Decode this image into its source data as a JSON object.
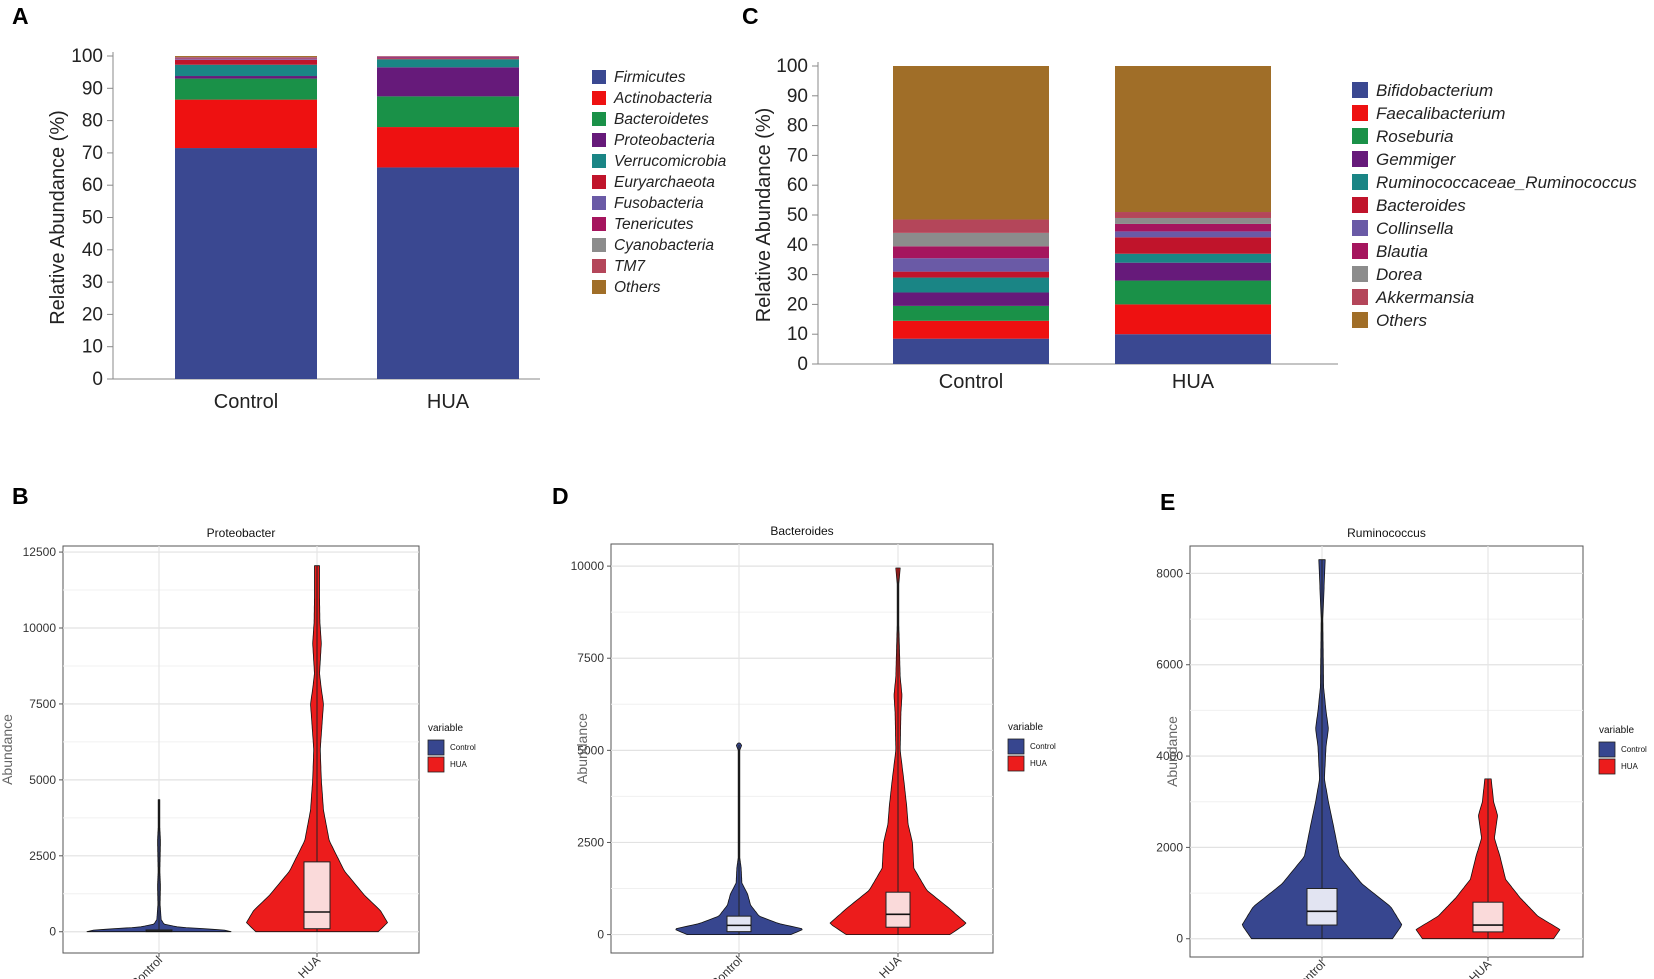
{
  "figure": {
    "panel_labels": [
      "A",
      "C",
      "B",
      "D",
      "E"
    ]
  },
  "chart_data": [
    {
      "id": "A",
      "type": "bar",
      "stacked": true,
      "title": "",
      "xlabel": "",
      "ylabel": "Relative Abundance (%)",
      "ylim": [
        0,
        100
      ],
      "yticks": [
        0,
        10,
        20,
        30,
        40,
        50,
        60,
        70,
        80,
        90,
        100
      ],
      "categories": [
        "Control",
        "HUA"
      ],
      "series": [
        {
          "name": "Firmicutes",
          "color": "#3A4891",
          "values": [
            71.5,
            65.5
          ]
        },
        {
          "name": "Actinobacteria",
          "color": "#EE1111",
          "values": [
            15.0,
            12.5
          ]
        },
        {
          "name": "Bacteroidetes",
          "color": "#1A9148",
          "values": [
            6.5,
            9.5
          ]
        },
        {
          "name": "Proteobacteria",
          "color": "#661A7A",
          "values": [
            0.8,
            9.0
          ]
        },
        {
          "name": "Verrucomicrobia",
          "color": "#1A8585",
          "values": [
            3.5,
            2.5
          ]
        },
        {
          "name": "Euryarchaeota",
          "color": "#C0142B",
          "values": [
            1.5,
            0.3
          ]
        },
        {
          "name": "Fusobacteria",
          "color": "#6A5AA6",
          "values": [
            0.2,
            0.2
          ]
        },
        {
          "name": "Tenericutes",
          "color": "#A5155E",
          "values": [
            0.3,
            0.3
          ]
        },
        {
          "name": "Cyanobacteria",
          "color": "#8C8C8C",
          "values": [
            0.2,
            0.1
          ]
        },
        {
          "name": "TM7",
          "color": "#B4465A",
          "values": [
            0.2,
            0.1
          ]
        },
        {
          "name": "Others",
          "color": "#A06E28",
          "values": [
            0.3,
            0.0
          ]
        }
      ]
    },
    {
      "id": "C",
      "type": "bar",
      "stacked": true,
      "title": "",
      "xlabel": "",
      "ylabel": "Relative Abundance (%)",
      "ylim": [
        0,
        100
      ],
      "yticks": [
        0,
        10,
        20,
        30,
        40,
        50,
        60,
        70,
        80,
        90,
        100
      ],
      "categories": [
        "Control",
        "HUA"
      ],
      "series": [
        {
          "name": "Bifidobacterium",
          "color": "#3A4891",
          "values": [
            8.5,
            10.0
          ]
        },
        {
          "name": "Faecalibacterium",
          "color": "#EE1111",
          "values": [
            6.0,
            10.0
          ]
        },
        {
          "name": "Roseburia",
          "color": "#1A9148",
          "values": [
            5.0,
            8.0
          ]
        },
        {
          "name": "Gemmiger",
          "color": "#661A7A",
          "values": [
            4.5,
            6.0
          ]
        },
        {
          "name": "Ruminococcaceae_Ruminococcus",
          "color": "#1A8585",
          "values": [
            5.0,
            3.0
          ]
        },
        {
          "name": "Bacteroides",
          "color": "#C0142B",
          "values": [
            2.0,
            5.5
          ]
        },
        {
          "name": "Collinsella",
          "color": "#6A5AA6",
          "values": [
            4.5,
            2.0
          ]
        },
        {
          "name": "Blautia",
          "color": "#A5155E",
          "values": [
            4.0,
            2.5
          ]
        },
        {
          "name": "Dorea",
          "color": "#8C8C8C",
          "values": [
            4.5,
            2.0
          ]
        },
        {
          "name": "Akkermansia",
          "color": "#B4465A",
          "values": [
            4.5,
            2.0
          ]
        },
        {
          "name": "Others",
          "color": "#A06E28",
          "values": [
            51.5,
            49.0
          ]
        }
      ]
    },
    {
      "id": "B",
      "type": "violin",
      "title": "Proteobacter",
      "ylabel": "Abundance",
      "ylim": [
        -700,
        12700
      ],
      "yticks": [
        0,
        2500,
        5000,
        7500,
        10000,
        12500
      ],
      "categories": [
        "Control",
        "HUA"
      ],
      "legend": {
        "title": "variable",
        "labels": [
          "Control",
          "HUA"
        ],
        "colors": [
          "#37468F",
          "#EC1C1C"
        ]
      },
      "groups": [
        {
          "name": "Control",
          "color": "#37468F",
          "box_color": "#E2E4F2",
          "stats": {
            "min": 0,
            "q1": 5,
            "median": 20,
            "q3": 60,
            "max": 4350
          },
          "density": [
            [
              0,
              1.0
            ],
            [
              60,
              0.9
            ],
            [
              150,
              0.28
            ],
            [
              250,
              0.07
            ],
            [
              400,
              0.03
            ],
            [
              900,
              0.015
            ],
            [
              1500,
              0.02
            ],
            [
              2000,
              0.012
            ],
            [
              2700,
              0.018
            ],
            [
              3000,
              0.02
            ],
            [
              3500,
              0.01
            ],
            [
              4350,
              0.005
            ]
          ]
        },
        {
          "name": "HUA",
          "color": "#EC1C1C",
          "box_color": "#FADADA",
          "stats": {
            "min": 0,
            "q1": 100,
            "median": 650,
            "q3": 2300,
            "max": 12050
          },
          "density": [
            [
              0,
              0.85
            ],
            [
              300,
              0.98
            ],
            [
              700,
              0.88
            ],
            [
              1200,
              0.66
            ],
            [
              2000,
              0.38
            ],
            [
              3000,
              0.17
            ],
            [
              4000,
              0.09
            ],
            [
              5000,
              0.06
            ],
            [
              6000,
              0.045
            ],
            [
              7000,
              0.075
            ],
            [
              7500,
              0.09
            ],
            [
              8000,
              0.06
            ],
            [
              8500,
              0.035
            ],
            [
              9500,
              0.06
            ],
            [
              10200,
              0.04
            ],
            [
              11000,
              0.035
            ],
            [
              12050,
              0.035
            ]
          ]
        }
      ]
    },
    {
      "id": "D",
      "type": "violin",
      "title": "Bacteroides",
      "ylabel": "Abundance",
      "ylim": [
        -500,
        10600
      ],
      "yticks": [
        0,
        2500,
        5000,
        7500,
        10000
      ],
      "categories": [
        "Control",
        "HUA"
      ],
      "legend": {
        "title": "variable",
        "labels": [
          "Control",
          "HUA"
        ],
        "colors": [
          "#37468F",
          "#EC1C1C"
        ]
      },
      "groups": [
        {
          "name": "Control",
          "color": "#37468F",
          "box_color": "#E2E4F2",
          "stats": {
            "min": 0,
            "q1": 80,
            "median": 250,
            "q3": 500,
            "max": 5150
          },
          "density": [
            [
              0,
              0.72
            ],
            [
              150,
              0.9
            ],
            [
              300,
              0.55
            ],
            [
              500,
              0.28
            ],
            [
              800,
              0.16
            ],
            [
              1100,
              0.12
            ],
            [
              1400,
              0.04
            ],
            [
              1800,
              0.03
            ],
            [
              2100,
              0.01
            ],
            [
              3500,
              0.008
            ],
            [
              5000,
              0.008
            ],
            [
              5150,
              0.04
            ],
            [
              5200,
              0.0
            ]
          ]
        },
        {
          "name": "HUA",
          "color": "#EC1C1C",
          "box_color": "#FADADA",
          "stats": {
            "min": 0,
            "q1": 200,
            "median": 550,
            "q3": 1150,
            "max": 9950
          },
          "density": [
            [
              0,
              0.72
            ],
            [
              300,
              0.95
            ],
            [
              700,
              0.72
            ],
            [
              1200,
              0.4
            ],
            [
              1800,
              0.22
            ],
            [
              2500,
              0.2
            ],
            [
              3000,
              0.14
            ],
            [
              3500,
              0.12
            ],
            [
              4200,
              0.08
            ],
            [
              5000,
              0.03
            ],
            [
              6000,
              0.04
            ],
            [
              6500,
              0.055
            ],
            [
              7000,
              0.03
            ],
            [
              8500,
              0.01
            ],
            [
              9500,
              0.01
            ],
            [
              9950,
              0.03
            ]
          ]
        }
      ]
    },
    {
      "id": "E",
      "type": "violin",
      "title": "Ruminococcus",
      "ylabel": "Abundance",
      "ylim": [
        -400,
        8600
      ],
      "yticks": [
        0,
        2000,
        4000,
        6000,
        8000
      ],
      "categories": [
        "Control",
        "HUA"
      ],
      "legend": {
        "title": "variable",
        "labels": [
          "Control",
          "HUA"
        ],
        "colors": [
          "#37468F",
          "#EC1C1C"
        ]
      },
      "groups": [
        {
          "name": "Control",
          "color": "#37468F",
          "box_color": "#E2E4F2",
          "stats": {
            "min": 0,
            "q1": 300,
            "median": 600,
            "q3": 1100,
            "max": 8300
          },
          "density": [
            [
              0,
              0.88
            ],
            [
              300,
              1.0
            ],
            [
              700,
              0.86
            ],
            [
              1200,
              0.5
            ],
            [
              1800,
              0.22
            ],
            [
              2500,
              0.14
            ],
            [
              3000,
              0.08
            ],
            [
              3500,
              0.03
            ],
            [
              4200,
              0.05
            ],
            [
              4600,
              0.08
            ],
            [
              5000,
              0.05
            ],
            [
              5500,
              0.02
            ],
            [
              7000,
              0.01
            ],
            [
              8300,
              0.04
            ]
          ]
        },
        {
          "name": "HUA",
          "color": "#EC1C1C",
          "box_color": "#FADADA",
          "stats": {
            "min": 0,
            "q1": 150,
            "median": 300,
            "q3": 800,
            "max": 3500
          },
          "density": [
            [
              0,
              0.82
            ],
            [
              200,
              0.9
            ],
            [
              500,
              0.62
            ],
            [
              900,
              0.4
            ],
            [
              1300,
              0.22
            ],
            [
              1800,
              0.15
            ],
            [
              2200,
              0.08
            ],
            [
              2700,
              0.12
            ],
            [
              3000,
              0.07
            ],
            [
              3500,
              0.04
            ]
          ]
        }
      ]
    }
  ]
}
